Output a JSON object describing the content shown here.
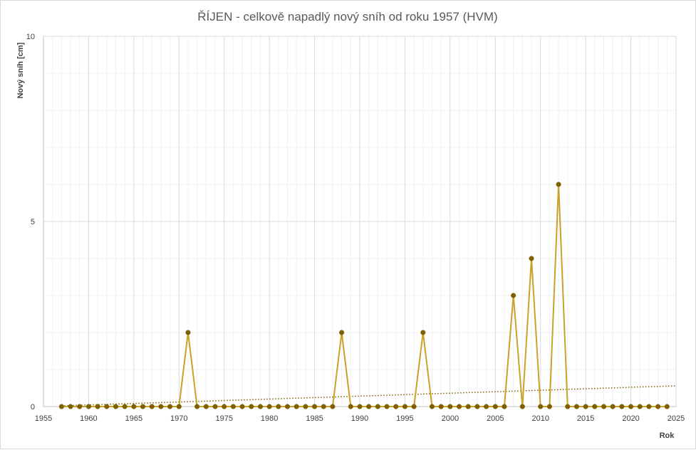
{
  "chart_data": {
    "type": "line",
    "title": "ŘÍJEN - celkově napadlý nový sníh od roku 1957 (HVM)",
    "xlabel": "Rok",
    "ylabel": "Nový sníh [cm]",
    "xlim": [
      1955,
      2025
    ],
    "ylim": [
      0,
      10
    ],
    "x_ticks": [
      "1955",
      "1960",
      "1965",
      "1970",
      "1975",
      "1980",
      "1985",
      "1990",
      "1995",
      "2000",
      "2005",
      "2010",
      "2015",
      "2020",
      "2025"
    ],
    "y_ticks": [
      "0",
      "5",
      "10"
    ],
    "grid": true,
    "legend": "none",
    "colors": {
      "line": "#c9a227",
      "marker": "#7f6000",
      "trend": "#7f6000",
      "grid_major": "#d9d9d9",
      "grid_minor": "#f0f0f0"
    },
    "series": [
      {
        "x": [
          1957,
          1958,
          1959,
          1960,
          1961,
          1962,
          1963,
          1964,
          1965,
          1966,
          1967,
          1968,
          1969,
          1970,
          1971,
          1972,
          1973,
          1974,
          1975,
          1976,
          1977,
          1978,
          1979,
          1980,
          1981,
          1982,
          1983,
          1984,
          1985,
          1986,
          1987,
          1988,
          1989,
          1990,
          1991,
          1992,
          1993,
          1994,
          1995,
          1996,
          1997,
          1998,
          1999,
          2000,
          2001,
          2002,
          2003,
          2004,
          2005,
          2006,
          2007,
          2008,
          2009,
          2010,
          2011,
          2012,
          2013,
          2014,
          2015,
          2016,
          2017,
          2018,
          2019,
          2020,
          2021,
          2022,
          2023,
          2024
        ],
        "values": [
          0,
          0,
          0,
          0,
          0,
          0,
          0,
          0,
          0,
          0,
          0,
          0,
          0,
          0,
          2,
          0,
          0,
          0,
          0,
          0,
          0,
          0,
          0,
          0,
          0,
          0,
          0,
          0,
          0,
          0,
          0,
          2,
          0,
          0,
          0,
          0,
          0,
          0,
          0,
          0,
          2,
          0,
          0,
          0,
          0,
          0,
          0,
          0,
          0,
          0,
          3,
          0,
          4,
          0,
          0,
          6,
          0,
          0,
          0,
          0,
          0,
          0,
          0,
          0,
          0,
          0,
          0,
          0
        ]
      }
    ],
    "trendline": {
      "type": "linear",
      "x": [
        1957,
        2025
      ],
      "y": [
        0.02,
        0.56
      ],
      "style": "dotted"
    }
  }
}
